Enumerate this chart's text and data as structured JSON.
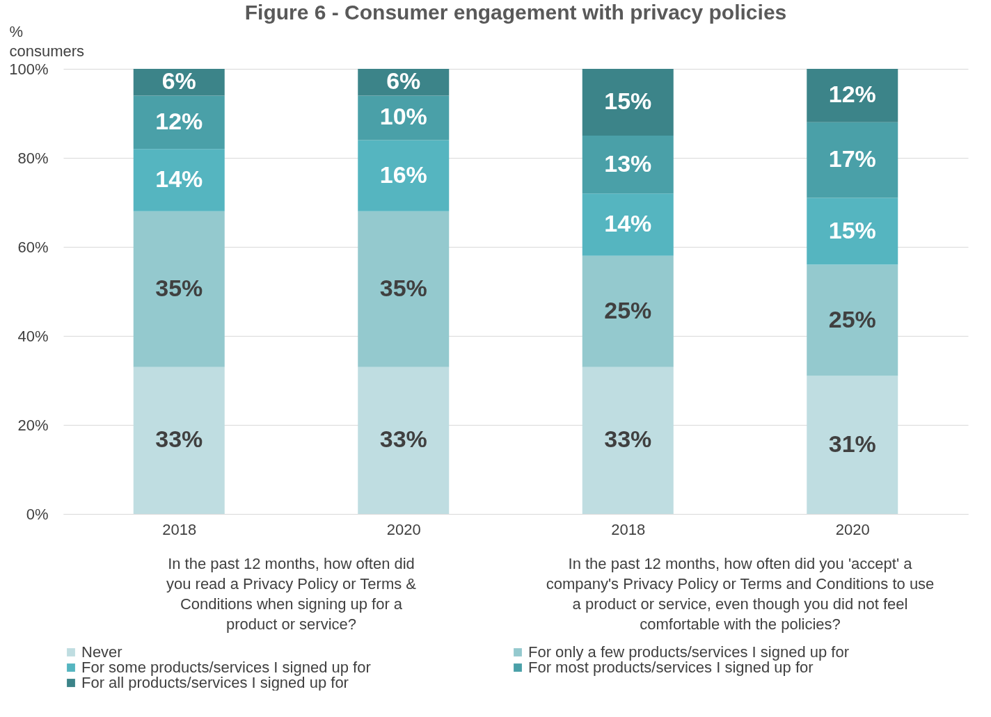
{
  "chart_data": {
    "type": "bar",
    "title": "Figure 6 - Consumer engagement with privacy policies",
    "ylabel": "% consumers",
    "categories": [
      "2018",
      "2020",
      "2018",
      "2020"
    ],
    "stacked": true,
    "grid": "y",
    "legend": "bottom",
    "ylim": [
      0,
      100
    ],
    "yticks": [
      {
        "value": 0,
        "label": "0%"
      },
      {
        "value": 20,
        "label": "20%"
      },
      {
        "value": 40,
        "label": "40%"
      },
      {
        "value": 60,
        "label": "60%"
      },
      {
        "value": 80,
        "label": "80%"
      },
      {
        "value": 100,
        "label": "100%"
      }
    ],
    "series": [
      {
        "name": "Never",
        "color": "#bfdde1",
        "values": [
          33,
          33,
          33,
          31
        ],
        "value_labels": [
          "33%",
          "33%",
          "33%",
          "31%"
        ]
      },
      {
        "name": "For only a few products/services I signed up for",
        "color": "#94c9ce",
        "values": [
          35,
          35,
          25,
          25
        ],
        "value_labels": [
          "35%",
          "35%",
          "25%",
          "25%"
        ]
      },
      {
        "name": "For some products/services I signed up for",
        "color": "#55b5c0",
        "values": [
          14,
          16,
          14,
          15
        ],
        "value_labels": [
          "14%",
          "16%",
          "14%",
          "15%"
        ]
      },
      {
        "name": "For most products/services I signed up for",
        "color": "#4aa0a8",
        "values": [
          12,
          10,
          13,
          17
        ],
        "value_labels": [
          "12%",
          "10%",
          "13%",
          "17%"
        ]
      },
      {
        "name": "For all products/services I signed up for",
        "color": "#3c8489",
        "values": [
          6,
          6,
          15,
          12
        ],
        "value_labels": [
          "6%",
          "6%",
          "15%",
          "12%"
        ]
      }
    ],
    "annotations": [
      "In the past 12 months, how often did you read a Privacy Policy or Terms & Conditions when signing up for a product or service?",
      "In the past 12 months, how often did you 'accept' a company's Privacy Policy or Terms and Conditions to use a product or service, even though you did not feel comfortable with the policies?"
    ]
  }
}
